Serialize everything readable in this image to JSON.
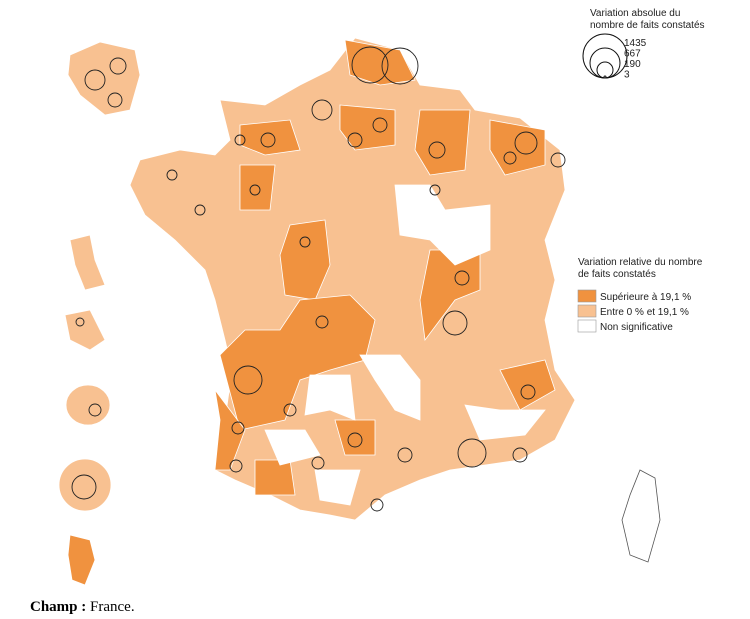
{
  "size_legend": {
    "title_lines": [
      "Variation absolue du",
      "nombre de faits constatés"
    ],
    "values": [
      1435,
      667,
      190,
      3
    ]
  },
  "color_legend": {
    "title_lines": [
      "Variation relative du nombre",
      "de faits constatés"
    ],
    "items": [
      {
        "label": "Supérieure à 19,1 %",
        "color": "#f0923f"
      },
      {
        "label": "Entre 0 % et 19,1 %",
        "color": "#f8c191"
      },
      {
        "label": "Non significative",
        "color": "#ffffff"
      }
    ]
  },
  "footer": {
    "label": "Champ :",
    "text": "France."
  }
}
